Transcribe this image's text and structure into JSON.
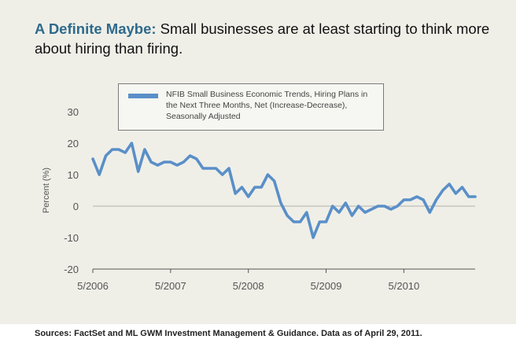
{
  "title": {
    "lead": "A Definite Maybe:",
    "rest": " Small businesses are at least starting to think more about hiring than firing."
  },
  "source": "Sources: FactSet and ML GWM Investment Management & Guidance. Data as of April 29, 2011.",
  "colors": {
    "title_accent": "#2e6a8c",
    "series": "#5a8fc8",
    "panel": "#efefe8"
  },
  "chart_data": {
    "type": "line",
    "ylabel": "Percent (%)",
    "ylim": [
      -20,
      30
    ],
    "yticks": [
      -20,
      -10,
      0,
      10,
      20,
      30
    ],
    "xlim": [
      0,
      59
    ],
    "xticks": [
      {
        "label": "5/2006",
        "index": 0
      },
      {
        "label": "5/2007",
        "index": 12
      },
      {
        "label": "5/2008",
        "index": 24
      },
      {
        "label": "5/2009",
        "index": 36
      },
      {
        "label": "5/2010",
        "index": 48
      }
    ],
    "grid": false,
    "legend": "top-center",
    "series": [
      {
        "name": "NFIB Small Business Economic Trends, Hiring Plans in the Next Three Months, Net (Increase-Decrease), Seasonally Adjusted",
        "x_start": "5/2006",
        "frequency": "monthly",
        "values": [
          15,
          10,
          16,
          18,
          18,
          17,
          20,
          11,
          18,
          14,
          13,
          14,
          14,
          13,
          14,
          16,
          15,
          12,
          12,
          12,
          10,
          12,
          4,
          6,
          3,
          6,
          6,
          10,
          8,
          1,
          -3,
          -5,
          -5,
          -2,
          -10,
          -5,
          -5,
          0,
          -2,
          1,
          -3,
          0,
          -2,
          -1,
          0,
          0,
          -1,
          0,
          2,
          2,
          3,
          2,
          -2,
          2,
          5,
          7,
          4,
          6,
          3,
          3
        ]
      }
    ]
  }
}
